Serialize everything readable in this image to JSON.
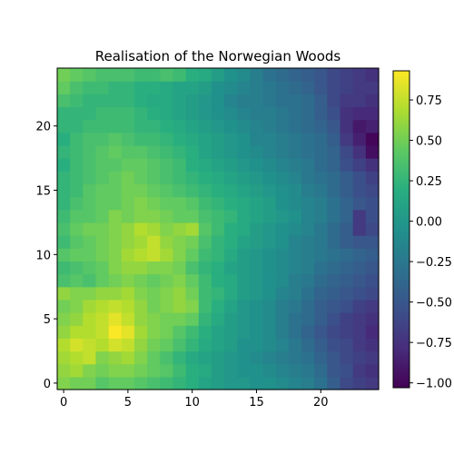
{
  "chart_data": {
    "type": "heatmap",
    "title": "Realisation of the Norwegian Woods",
    "xlabel": "",
    "ylabel": "",
    "colormap": "viridis",
    "grid": false,
    "origin": "lower",
    "x_ticks": [
      "0",
      "5",
      "10",
      "15",
      "20"
    ],
    "y_ticks": [
      "0",
      "5",
      "10",
      "15",
      "20"
    ],
    "x_range": [
      -0.5,
      24.5
    ],
    "y_range": [
      -0.5,
      24.5
    ],
    "colorbar": {
      "vmin": -1.03,
      "vmax": 0.93,
      "ticks": [
        "0.75",
        "0.50",
        "0.25",
        "0.00",
        "−0.25",
        "−0.50",
        "−0.75",
        "−1.00"
      ],
      "tick_values": [
        0.75,
        0.5,
        0.25,
        0.0,
        -0.25,
        -0.5,
        -0.75,
        -1.0
      ]
    },
    "values": [
      [
        0.55,
        0.5,
        0.5,
        0.4,
        0.45,
        0.45,
        0.4,
        0.35,
        0.3,
        0.25,
        0.2,
        0.1,
        0.05,
        0.0,
        0.0,
        -0.05,
        -0.05,
        -0.1,
        -0.15,
        -0.2,
        -0.3,
        -0.45,
        -0.6,
        -0.65,
        -0.7
      ],
      [
        0.6,
        0.65,
        0.55,
        0.5,
        0.55,
        0.55,
        0.5,
        0.45,
        0.4,
        0.3,
        0.2,
        0.15,
        0.05,
        0.0,
        -0.05,
        -0.05,
        -0.1,
        -0.15,
        -0.2,
        -0.25,
        -0.35,
        -0.5,
        -0.55,
        -0.7,
        -0.75
      ],
      [
        0.65,
        0.7,
        0.75,
        0.55,
        0.6,
        0.65,
        0.55,
        0.45,
        0.35,
        0.25,
        0.15,
        0.1,
        0.05,
        0.0,
        -0.05,
        -0.1,
        -0.15,
        -0.2,
        -0.25,
        -0.3,
        -0.4,
        -0.5,
        -0.6,
        -0.65,
        -0.7
      ],
      [
        0.7,
        0.8,
        0.75,
        0.7,
        0.8,
        0.75,
        0.6,
        0.5,
        0.45,
        0.35,
        0.25,
        0.15,
        0.1,
        0.05,
        -0.05,
        -0.05,
        -0.1,
        -0.15,
        -0.25,
        -0.35,
        -0.45,
        -0.55,
        -0.6,
        -0.7,
        -0.75
      ],
      [
        0.6,
        0.7,
        0.7,
        0.75,
        0.92,
        0.85,
        0.65,
        0.55,
        0.5,
        0.4,
        0.3,
        0.2,
        0.1,
        0.05,
        0.0,
        -0.05,
        -0.1,
        -0.2,
        -0.3,
        -0.4,
        -0.5,
        -0.6,
        -0.65,
        -0.7,
        -0.8
      ],
      [
        0.55,
        0.6,
        0.7,
        0.75,
        0.85,
        0.75,
        0.6,
        0.55,
        0.5,
        0.5,
        0.45,
        0.25,
        0.15,
        0.05,
        0.0,
        -0.05,
        -0.1,
        -0.2,
        -0.3,
        -0.35,
        -0.45,
        -0.55,
        -0.65,
        -0.7,
        -0.75
      ],
      [
        0.5,
        0.55,
        0.65,
        0.7,
        0.75,
        0.7,
        0.6,
        0.5,
        0.55,
        0.6,
        0.55,
        0.3,
        0.2,
        0.1,
        0.0,
        -0.05,
        -0.1,
        -0.2,
        -0.25,
        -0.35,
        -0.45,
        -0.5,
        -0.55,
        -0.65,
        -0.7
      ],
      [
        0.6,
        0.55,
        0.55,
        0.6,
        0.6,
        0.65,
        0.55,
        0.5,
        0.55,
        0.6,
        0.5,
        0.3,
        0.25,
        0.15,
        0.05,
        0.0,
        -0.05,
        -0.15,
        -0.2,
        -0.3,
        -0.4,
        -0.45,
        -0.5,
        -0.55,
        -0.6
      ],
      [
        0.35,
        0.4,
        0.35,
        0.45,
        0.5,
        0.55,
        0.5,
        0.45,
        0.5,
        0.55,
        0.45,
        0.3,
        0.2,
        0.15,
        0.05,
        0.0,
        -0.05,
        -0.1,
        -0.2,
        -0.25,
        -0.35,
        -0.4,
        -0.45,
        -0.5,
        -0.55
      ],
      [
        0.3,
        0.35,
        0.4,
        0.45,
        0.55,
        0.6,
        0.6,
        0.55,
        0.55,
        0.5,
        0.35,
        0.25,
        0.2,
        0.1,
        0.05,
        0.0,
        -0.05,
        -0.1,
        -0.15,
        -0.2,
        -0.3,
        -0.35,
        -0.4,
        -0.45,
        -0.5
      ],
      [
        0.4,
        0.45,
        0.45,
        0.5,
        0.55,
        0.65,
        0.7,
        0.75,
        0.65,
        0.55,
        0.45,
        0.3,
        0.25,
        0.15,
        0.05,
        0.0,
        -0.05,
        -0.1,
        -0.15,
        -0.2,
        -0.25,
        -0.3,
        -0.35,
        -0.4,
        -0.45
      ],
      [
        0.3,
        0.4,
        0.45,
        0.5,
        0.55,
        0.6,
        0.65,
        0.75,
        0.6,
        0.55,
        0.5,
        0.35,
        0.25,
        0.2,
        0.1,
        0.05,
        0.0,
        -0.05,
        -0.15,
        -0.2,
        -0.25,
        -0.35,
        -0.45,
        -0.5,
        -0.5
      ],
      [
        0.35,
        0.45,
        0.5,
        0.5,
        0.55,
        0.6,
        0.7,
        0.65,
        0.55,
        0.6,
        0.65,
        0.4,
        0.3,
        0.2,
        0.15,
        0.05,
        0.0,
        -0.05,
        -0.1,
        -0.15,
        -0.25,
        -0.35,
        -0.45,
        -0.7,
        -0.6
      ],
      [
        0.3,
        0.4,
        0.4,
        0.45,
        0.55,
        0.5,
        0.55,
        0.55,
        0.5,
        0.45,
        0.45,
        0.35,
        0.3,
        0.25,
        0.15,
        0.1,
        0.05,
        0.0,
        -0.05,
        -0.15,
        -0.2,
        -0.3,
        -0.4,
        -0.7,
        -0.55
      ],
      [
        0.25,
        0.35,
        0.4,
        0.45,
        0.45,
        0.5,
        0.55,
        0.5,
        0.45,
        0.45,
        0.4,
        0.3,
        0.25,
        0.2,
        0.15,
        0.1,
        0.05,
        -0.05,
        -0.1,
        -0.15,
        -0.2,
        -0.3,
        -0.4,
        -0.5,
        -0.55
      ],
      [
        0.25,
        0.3,
        0.4,
        0.45,
        0.45,
        0.5,
        0.5,
        0.45,
        0.4,
        0.35,
        0.3,
        0.25,
        0.2,
        0.15,
        0.1,
        0.05,
        0.0,
        -0.05,
        -0.1,
        -0.2,
        -0.25,
        -0.35,
        -0.45,
        -0.55,
        -0.6
      ],
      [
        0.25,
        0.3,
        0.35,
        0.4,
        0.45,
        0.5,
        0.45,
        0.4,
        0.35,
        0.3,
        0.25,
        0.2,
        0.15,
        0.1,
        0.05,
        0.0,
        -0.05,
        -0.1,
        -0.15,
        -0.25,
        -0.3,
        -0.35,
        -0.45,
        -0.55,
        -0.65
      ],
      [
        0.2,
        0.3,
        0.35,
        0.4,
        0.4,
        0.45,
        0.45,
        0.4,
        0.35,
        0.3,
        0.2,
        0.15,
        0.1,
        0.05,
        0.0,
        -0.05,
        -0.1,
        -0.15,
        -0.2,
        -0.25,
        -0.35,
        -0.4,
        -0.55,
        -0.65,
        -0.75
      ],
      [
        0.25,
        0.3,
        0.35,
        0.4,
        0.45,
        0.4,
        0.4,
        0.35,
        0.3,
        0.25,
        0.2,
        0.1,
        0.05,
        0.0,
        -0.05,
        -0.1,
        -0.15,
        -0.2,
        -0.25,
        -0.3,
        -0.35,
        -0.4,
        -0.6,
        -0.75,
        -0.95
      ],
      [
        0.2,
        0.3,
        0.35,
        0.35,
        0.4,
        0.35,
        0.3,
        0.3,
        0.25,
        0.2,
        0.15,
        0.1,
        0.05,
        0.0,
        -0.05,
        -0.15,
        -0.15,
        -0.2,
        -0.25,
        -0.3,
        -0.35,
        -0.45,
        -0.7,
        -0.85,
        -1.0
      ],
      [
        0.25,
        0.25,
        0.3,
        0.3,
        0.3,
        0.3,
        0.25,
        0.25,
        0.2,
        0.15,
        0.1,
        0.05,
        0.0,
        -0.05,
        -0.1,
        -0.15,
        -0.2,
        -0.25,
        -0.3,
        -0.35,
        -0.4,
        -0.5,
        -0.75,
        -0.9,
        -0.85
      ],
      [
        0.25,
        0.25,
        0.25,
        0.3,
        0.3,
        0.3,
        0.25,
        0.2,
        0.15,
        0.1,
        0.05,
        0.0,
        -0.05,
        -0.1,
        -0.15,
        -0.2,
        -0.2,
        -0.25,
        -0.3,
        -0.35,
        -0.45,
        -0.55,
        -0.75,
        -0.8,
        -0.8
      ],
      [
        0.35,
        0.3,
        0.25,
        0.25,
        0.25,
        0.25,
        0.2,
        0.15,
        0.15,
        0.1,
        0.05,
        0.0,
        -0.05,
        -0.15,
        -0.2,
        -0.2,
        -0.25,
        -0.3,
        -0.3,
        -0.35,
        -0.45,
        -0.6,
        -0.7,
        -0.7,
        -0.75
      ],
      [
        0.45,
        0.35,
        0.3,
        0.3,
        0.25,
        0.25,
        0.2,
        0.2,
        0.15,
        0.1,
        0.1,
        0.05,
        -0.05,
        -0.1,
        -0.15,
        -0.2,
        -0.25,
        -0.3,
        -0.35,
        -0.4,
        -0.5,
        -0.6,
        -0.65,
        -0.7,
        -0.7
      ],
      [
        0.5,
        0.45,
        0.4,
        0.35,
        0.35,
        0.35,
        0.3,
        0.3,
        0.35,
        0.3,
        0.2,
        0.15,
        0.05,
        -0.05,
        -0.1,
        -0.2,
        -0.3,
        -0.35,
        -0.4,
        -0.45,
        -0.5,
        -0.6,
        -0.65,
        -0.7,
        -0.75
      ]
    ]
  }
}
